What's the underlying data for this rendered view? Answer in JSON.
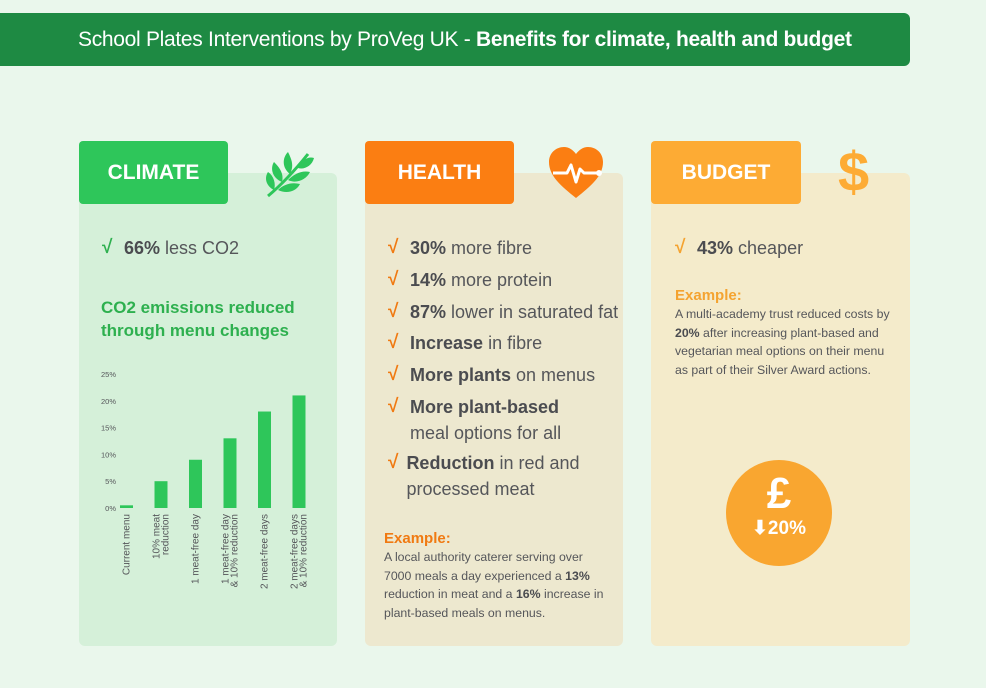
{
  "header": {
    "title_prefix": "School Plates Interventions by ProVeg UK - ",
    "title_bold": "Benefits for climate, health and budget"
  },
  "colors": {
    "banner": "#1e8a43",
    "climate": "#2ec65a",
    "health": "#fb7e12",
    "budget": "#fdab34"
  },
  "climate": {
    "tab_label": "CLIMATE",
    "icon": "leaf-branch-icon",
    "stat": {
      "bold": "66%",
      "rest": " less CO2"
    },
    "chart_title": "CO2 emissions reduced through menu changes"
  },
  "health": {
    "tab_label": "HEALTH",
    "icon": "heart-pulse-icon",
    "stats": [
      {
        "bold": "30%",
        "rest": " more fibre"
      },
      {
        "bold": "14%",
        "rest": " more protein"
      },
      {
        "bold": "87%",
        "rest": " lower in saturated fat"
      },
      {
        "bold": "Increase",
        "rest": " in fibre"
      },
      {
        "bold": "More plants",
        "rest": " on menus"
      },
      {
        "bold": "More plant-based",
        "rest": "meal options for all"
      },
      {
        "bold": "Reduction",
        "rest": " in red and processed meat"
      }
    ],
    "example_label": "Example:",
    "example": {
      "t1": "A local authority caterer serving over 7000 meals a day experienced a ",
      "b1": "13%",
      "t2": " reduction in meat and a ",
      "b2": "16%",
      "t3": " increase in plant-based meals on menus."
    }
  },
  "budget": {
    "tab_label": "BUDGET",
    "icon": "dollar-sign-icon",
    "stat": {
      "bold": "43%",
      "rest": " cheaper"
    },
    "example_label": "Example:",
    "example": {
      "t1": "A multi-academy trust reduced costs by ",
      "b1": "20%",
      "t2": " after increasing plant-based and vegetarian meal options on their menu as part of their Silver Award actions."
    },
    "badge_symbol": "£",
    "badge_value": "⬇20%"
  },
  "chart_data": {
    "type": "bar",
    "categories": [
      "Current menu",
      "10% meat reduction",
      "1 meat-free day",
      "1 meat-free day & 10% reduction",
      "2 meat-free days",
      "2 meat-free days & 10% reduction"
    ],
    "category_lines": [
      [
        "Current menu"
      ],
      [
        "10% meat",
        "reduction"
      ],
      [
        "1 meat-free day"
      ],
      [
        "1 meat-free day",
        "& 10% reduction"
      ],
      [
        "2 meat-free days"
      ],
      [
        "2 meat-free days",
        "& 10% reduction"
      ]
    ],
    "values": [
      0.5,
      5,
      9,
      13,
      18,
      21
    ],
    "ylim": [
      0,
      25
    ],
    "yticks": [
      0,
      5,
      10,
      15,
      20,
      25
    ],
    "ytick_labels": [
      "0%",
      "5%",
      "10%",
      "15%",
      "20%",
      "25%"
    ],
    "color": "#2ec65a",
    "grid": false
  }
}
